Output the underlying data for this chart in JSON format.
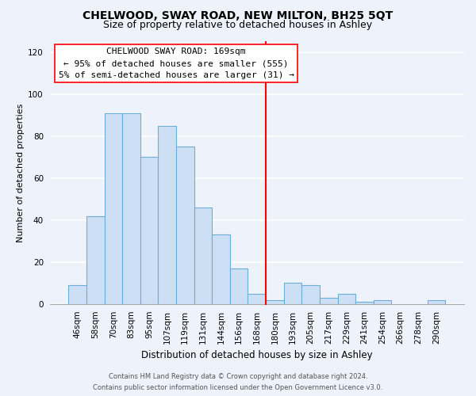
{
  "title": "CHELWOOD, SWAY ROAD, NEW MILTON, BH25 5QT",
  "subtitle": "Size of property relative to detached houses in Ashley",
  "xlabel": "Distribution of detached houses by size in Ashley",
  "ylabel": "Number of detached properties",
  "bar_labels": [
    "46sqm",
    "58sqm",
    "70sqm",
    "83sqm",
    "95sqm",
    "107sqm",
    "119sqm",
    "131sqm",
    "144sqm",
    "156sqm",
    "168sqm",
    "180sqm",
    "193sqm",
    "205sqm",
    "217sqm",
    "229sqm",
    "241sqm",
    "254sqm",
    "266sqm",
    "278sqm",
    "290sqm"
  ],
  "bar_values": [
    9,
    42,
    91,
    91,
    70,
    85,
    75,
    46,
    33,
    17,
    5,
    2,
    10,
    9,
    3,
    5,
    1,
    2,
    0,
    0,
    2
  ],
  "bar_color": "#ccdff5",
  "bar_edge_color": "#6baed6",
  "annotation_text_line1": "CHELWOOD SWAY ROAD: 169sqm",
  "annotation_text_line2": "← 95% of detached houses are smaller (555)",
  "annotation_text_line3": "5% of semi-detached houses are larger (31) →",
  "annotation_line_color": "red",
  "ylim": [
    0,
    125
  ],
  "yticks": [
    0,
    20,
    40,
    60,
    80,
    100,
    120
  ],
  "footer_line1": "Contains HM Land Registry data © Crown copyright and database right 2024.",
  "footer_line2": "Contains public sector information licensed under the Open Government Licence v3.0.",
  "bg_color": "#eef2fa",
  "grid_color": "white",
  "title_fontsize": 10,
  "subtitle_fontsize": 9,
  "xlabel_fontsize": 8.5,
  "ylabel_fontsize": 8,
  "tick_fontsize": 7.5,
  "annotation_fontsize": 8,
  "footer_fontsize": 6
}
